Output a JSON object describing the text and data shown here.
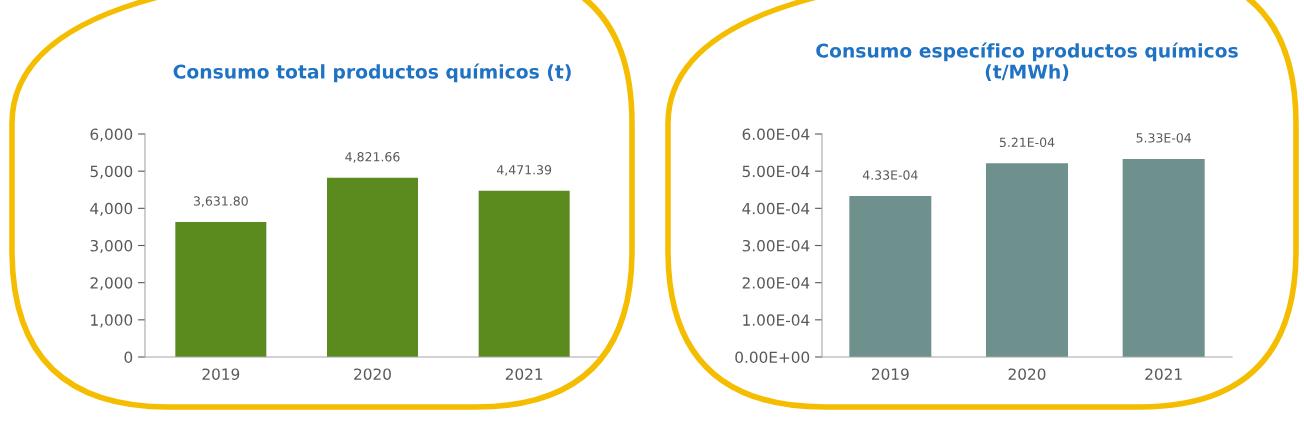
{
  "chart_data": [
    {
      "type": "bar",
      "title": "Consumo total productos químicos (t)",
      "categories": [
        "2019",
        "2020",
        "2021"
      ],
      "values": [
        3631.8,
        4821.66,
        4471.39
      ],
      "value_labels": [
        "3,631.80",
        "4,821.66",
        "4,471.39"
      ],
      "color": "#5b8a1e",
      "ylim": [
        0,
        6000
      ],
      "yticks": [
        {
          "value": 0,
          "label": "0"
        },
        {
          "value": 1000,
          "label": "1,000"
        },
        {
          "value": 2000,
          "label": "2,000"
        },
        {
          "value": 3000,
          "label": "3,000"
        },
        {
          "value": 4000,
          "label": "4,000"
        },
        {
          "value": 5000,
          "label": "5,000"
        },
        {
          "value": 6000,
          "label": "6,000"
        }
      ]
    },
    {
      "type": "bar",
      "title": "Consumo específico productos químicos\n(t/MWh)",
      "categories": [
        "2019",
        "2020",
        "2021"
      ],
      "values": [
        0.000433,
        0.000521,
        0.000533
      ],
      "value_labels": [
        "4.33E-04",
        "5.21E-04",
        "5.33E-04"
      ],
      "color": "#6f918e",
      "ylim": [
        0,
        0.0006
      ],
      "yticks": [
        {
          "value": 0,
          "label": "0.00E+00"
        },
        {
          "value": 0.0001,
          "label": "1.00E-04"
        },
        {
          "value": 0.0002,
          "label": "2.00E-04"
        },
        {
          "value": 0.0003,
          "label": "3.00E-04"
        },
        {
          "value": 0.0004,
          "label": "4.00E-04"
        },
        {
          "value": 0.0005,
          "label": "5.00E-04"
        },
        {
          "value": 0.0006,
          "label": "6.00E-04"
        }
      ]
    }
  ]
}
